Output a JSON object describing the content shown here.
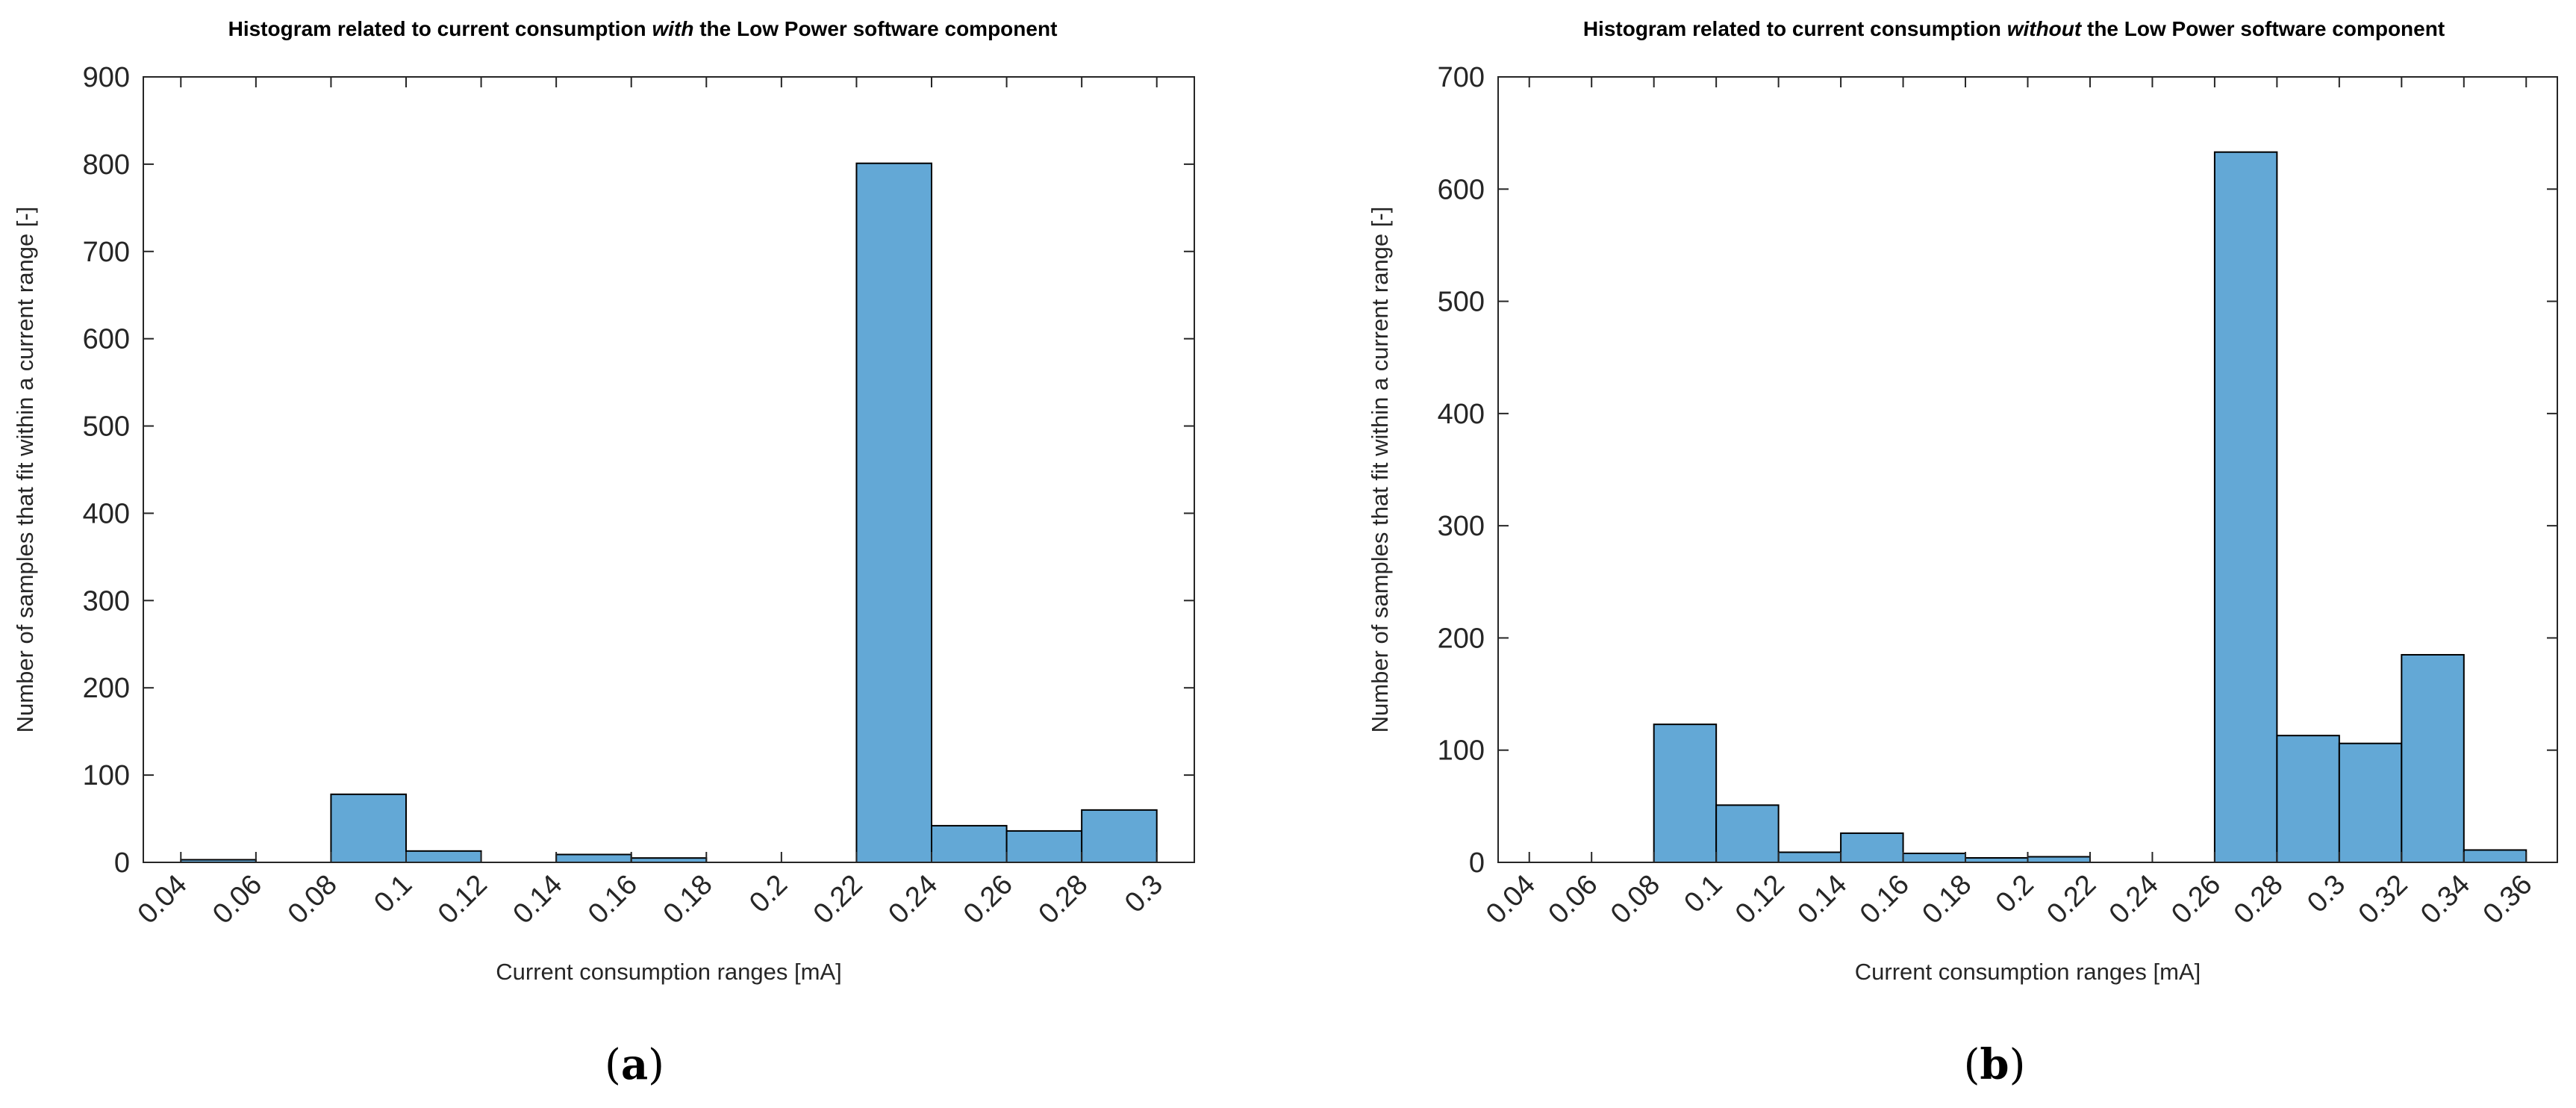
{
  "colors": {
    "bar_fill": "#63a8d6",
    "bar_edge": "#000000",
    "axis": "#262626",
    "background": "#ffffff"
  },
  "chart_data": [
    {
      "type": "bar",
      "subtitle": "(a)",
      "subtitle_letter": "a",
      "title": {
        "before": "Histogram related to current consumption ",
        "emphasis": "with",
        "after": " the Low Power software component"
      },
      "xlabel": "Current consumption ranges [mA]",
      "ylabel": "Number of samples that fit within a current range [-]",
      "x_tick_labels": [
        "0.04",
        "0.06",
        "0.08",
        "0.1",
        "0.12",
        "0.14",
        "0.16",
        "0.18",
        "0.2",
        "0.22",
        "0.24",
        "0.26",
        "0.28",
        "0.3"
      ],
      "y_tick_labels": [
        "0",
        "100",
        "200",
        "300",
        "400",
        "500",
        "600",
        "700",
        "800",
        "900"
      ],
      "ylim": [
        0,
        900
      ],
      "xlim": [
        0.03,
        0.31
      ],
      "grid": false,
      "bins": [
        {
          "start": 0.04,
          "end": 0.06,
          "value": 3
        },
        {
          "start": 0.08,
          "end": 0.1,
          "value": 78
        },
        {
          "start": 0.1,
          "end": 0.12,
          "value": 13
        },
        {
          "start": 0.14,
          "end": 0.16,
          "value": 9
        },
        {
          "start": 0.16,
          "end": 0.18,
          "value": 5
        },
        {
          "start": 0.22,
          "end": 0.24,
          "value": 801
        },
        {
          "start": 0.24,
          "end": 0.26,
          "value": 42
        },
        {
          "start": 0.26,
          "end": 0.28,
          "value": 36
        },
        {
          "start": 0.28,
          "end": 0.3,
          "value": 60
        }
      ]
    },
    {
      "type": "bar",
      "subtitle": "(b)",
      "subtitle_letter": "b",
      "title": {
        "before": "Histogram related to current consumption ",
        "emphasis": "without",
        "after": " the Low Power software component"
      },
      "xlabel": "Current consumption ranges [mA]",
      "ylabel": "Number of samples that fit within a current range [-]",
      "x_tick_labels": [
        "0.04",
        "0.06",
        "0.08",
        "0.1",
        "0.12",
        "0.14",
        "0.16",
        "0.18",
        "0.2",
        "0.22",
        "0.24",
        "0.26",
        "0.28",
        "0.3",
        "0.32",
        "0.34",
        "0.36"
      ],
      "y_tick_labels": [
        "0",
        "100",
        "200",
        "300",
        "400",
        "500",
        "600",
        "700"
      ],
      "ylim": [
        0,
        700
      ],
      "xlim": [
        0.03,
        0.37
      ],
      "grid": false,
      "bins": [
        {
          "start": 0.08,
          "end": 0.1,
          "value": 123
        },
        {
          "start": 0.1,
          "end": 0.12,
          "value": 51
        },
        {
          "start": 0.12,
          "end": 0.14,
          "value": 9
        },
        {
          "start": 0.14,
          "end": 0.16,
          "value": 26
        },
        {
          "start": 0.16,
          "end": 0.18,
          "value": 8
        },
        {
          "start": 0.18,
          "end": 0.2,
          "value": 4
        },
        {
          "start": 0.2,
          "end": 0.22,
          "value": 5
        },
        {
          "start": 0.26,
          "end": 0.28,
          "value": 633
        },
        {
          "start": 0.28,
          "end": 0.3,
          "value": 113
        },
        {
          "start": 0.3,
          "end": 0.32,
          "value": 106
        },
        {
          "start": 0.32,
          "end": 0.34,
          "value": 185
        },
        {
          "start": 0.34,
          "end": 0.36,
          "value": 11
        }
      ]
    }
  ]
}
